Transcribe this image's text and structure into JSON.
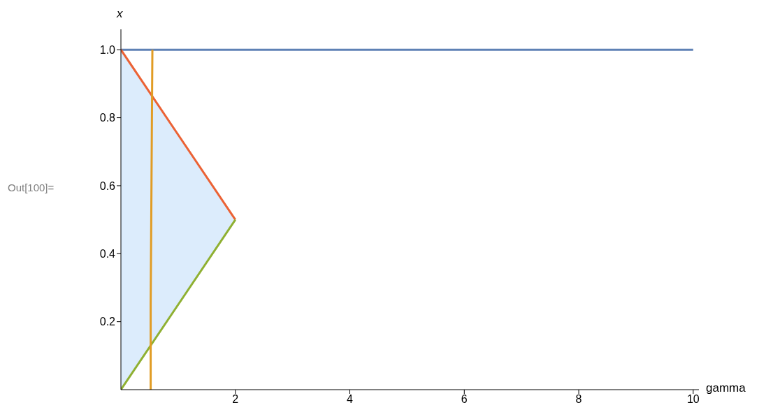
{
  "chart_data": {
    "type": "line",
    "xlabel": "gamma",
    "ylabel": "x",
    "annotations": [
      "Out[100]="
    ],
    "xlim": [
      0,
      10.1
    ],
    "xticks": [
      2,
      4,
      6,
      8,
      10
    ],
    "ylim": [
      0,
      1.06
    ],
    "yticks": [
      0.2,
      0.4,
      0.6,
      0.8,
      {
        "value": 1,
        "label": "1.0"
      }
    ],
    "series": [
      {
        "color": "#5e81b5",
        "x": [
          0,
          10
        ],
        "values": [
          1,
          1
        ]
      },
      {
        "color": "#eb6235",
        "x": [
          0,
          2
        ],
        "values": [
          1,
          0.5
        ],
        "lower": [
          0,
          0.5
        ],
        "upper": [
          1,
          0.5
        ]
      },
      {
        "color": "#8fb032",
        "x": [
          0,
          2
        ],
        "values": [
          0,
          0.5
        ]
      },
      {
        "color": "#e19c24",
        "x": [
          0.55,
          0.54,
          0.53,
          0.52,
          0.52
        ],
        "values": [
          1,
          0.75,
          0.5,
          0.25,
          0
        ]
      }
    ]
  }
}
